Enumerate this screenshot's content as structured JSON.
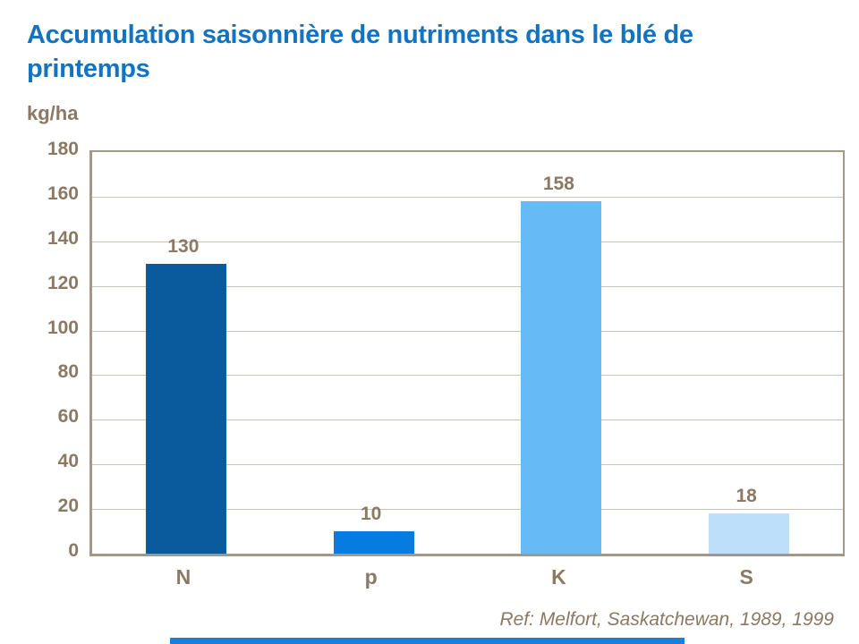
{
  "slide": {
    "title": "Accumulation saisonnière de nutriments dans le blé de printemps",
    "reference": "Ref: Melfort, Saskatchewan, 1989, 1999"
  },
  "chart_data": {
    "type": "bar",
    "title": "Accumulation saisonnière de nutriments dans le blé de printemps",
    "ylabel": "kg/ha",
    "xlabel": "",
    "categories": [
      "N",
      "p",
      "K",
      "S"
    ],
    "values": [
      130,
      10,
      158,
      18
    ],
    "data_labels": [
      "130",
      "10",
      "158",
      "18"
    ],
    "bar_colors": [
      "#0A5B9D",
      "#077CE0",
      "#66BBF7",
      "#BDDFF9"
    ],
    "ylim": [
      0,
      180
    ],
    "ytick_step": 20,
    "yticks": [
      0,
      20,
      40,
      60,
      80,
      100,
      120,
      140,
      160,
      180
    ],
    "grid": true,
    "legend": false
  },
  "colors": {
    "title_blue": "#1273C2",
    "text_brown": "#8A7963",
    "axis_line": "#A39885",
    "gridline": "#C8C2B7",
    "accent_strip_blue": "#1E7FD4"
  }
}
